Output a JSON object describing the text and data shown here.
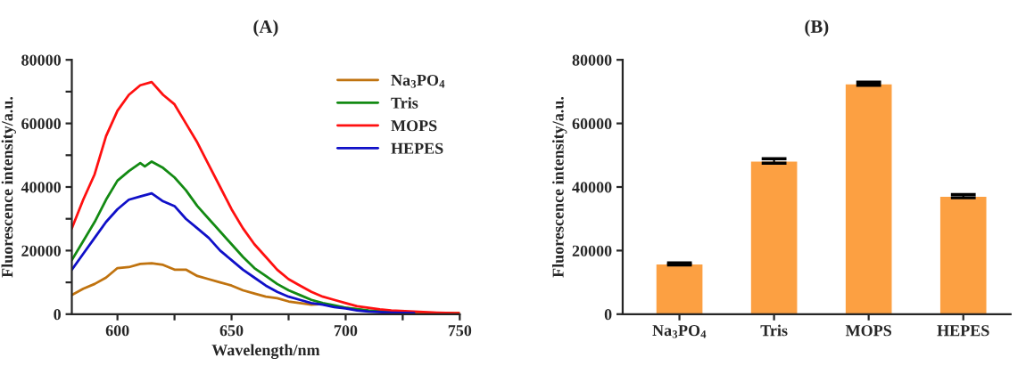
{
  "chart_data": [
    {
      "type": "line",
      "title": "(A)",
      "xlabel": "Wavelength/nm",
      "ylabel": "Fluorescence intensity/a.u.",
      "xlim": [
        580,
        750
      ],
      "xticks": [
        600,
        {
          "value": 625,
          "label": null
        },
        650,
        {
          "value": 675,
          "label": null
        },
        700,
        {
          "value": 725,
          "label": null
        },
        750
      ],
      "ylim": [
        0,
        80000
      ],
      "yticks": [
        0,
        {
          "value": 10000,
          "label": null
        },
        20000,
        {
          "value": 30000,
          "label": null
        },
        40000,
        {
          "value": 50000,
          "label": null
        },
        60000,
        {
          "value": 70000,
          "label": null
        },
        80000
      ],
      "legend": "top right",
      "grid": false,
      "series": [
        {
          "name": "Na$_{3}$PO$_{4}$",
          "color": "#c0730f",
          "x": [
            580,
            585,
            590,
            595,
            600,
            605,
            610,
            615,
            620,
            625,
            630,
            635,
            640,
            645,
            650,
            655,
            660,
            665,
            670,
            675,
            680,
            685,
            690,
            695,
            700,
            710,
            720,
            730,
            740,
            750
          ],
          "values": [
            6000,
            8000,
            9500,
            11500,
            14500,
            14800,
            15800,
            16000,
            15500,
            14000,
            14000,
            12000,
            11000,
            10000,
            9000,
            7500,
            6500,
            5500,
            5000,
            4000,
            3500,
            3000,
            3200,
            2500,
            2000,
            1000,
            700,
            500,
            400,
            300
          ]
        },
        {
          "name": "Tris",
          "color": "#138a13",
          "x": [
            580,
            585,
            590,
            595,
            600,
            605,
            610,
            612,
            615,
            620,
            625,
            630,
            635,
            640,
            645,
            650,
            655,
            660,
            665,
            670,
            675,
            680,
            685,
            690,
            695,
            700,
            710,
            720
          ],
          "values": [
            17000,
            23000,
            29000,
            36000,
            42000,
            45000,
            47500,
            46500,
            48000,
            46000,
            43000,
            39000,
            34000,
            30000,
            26000,
            22000,
            18000,
            14500,
            12000,
            9500,
            7500,
            6000,
            4500,
            3500,
            2800,
            2000,
            1200,
            700
          ]
        },
        {
          "name": "MOPS",
          "color": "#ff1010",
          "x": [
            580,
            585,
            590,
            595,
            600,
            605,
            610,
            615,
            620,
            625,
            630,
            635,
            640,
            645,
            650,
            655,
            660,
            665,
            670,
            675,
            680,
            685,
            690,
            695,
            700,
            705,
            710,
            715,
            720,
            730,
            740,
            750
          ],
          "values": [
            27000,
            36000,
            44000,
            56000,
            64000,
            69000,
            72000,
            73000,
            69000,
            66000,
            60000,
            54000,
            47000,
            40000,
            33000,
            27000,
            22000,
            18000,
            14000,
            11000,
            9000,
            7000,
            5500,
            4500,
            3500,
            2500,
            2000,
            1500,
            1200,
            800,
            500,
            300
          ]
        },
        {
          "name": "HEPES",
          "color": "#1010c8",
          "x": [
            580,
            585,
            590,
            595,
            600,
            605,
            610,
            615,
            620,
            625,
            630,
            635,
            640,
            645,
            650,
            655,
            660,
            665,
            670,
            675,
            680,
            685,
            690,
            695,
            700,
            705,
            710,
            720,
            730
          ],
          "values": [
            14000,
            19000,
            24000,
            29000,
            33000,
            36000,
            37000,
            38000,
            35500,
            34000,
            30000,
            27000,
            24000,
            20000,
            17000,
            14000,
            11500,
            9000,
            7000,
            5500,
            4500,
            3500,
            3000,
            2200,
            1800,
            1200,
            800,
            500,
            300
          ]
        }
      ]
    },
    {
      "type": "bar",
      "title": "(B)",
      "ylabel": "Fluorescence intensity/a.u.",
      "categories": [
        "Na$_{3}$PO$_{4}$",
        "Tris",
        "MOPS",
        "HEPES"
      ],
      "ylim": [
        0,
        80000
      ],
      "yticks": [
        0,
        20000,
        40000,
        60000,
        80000
      ],
      "grid": false,
      "values": [
        15800,
        48200,
        72500,
        37100
      ],
      "errors": [
        300,
        700,
        500,
        500
      ],
      "color": "#fca042"
    }
  ]
}
